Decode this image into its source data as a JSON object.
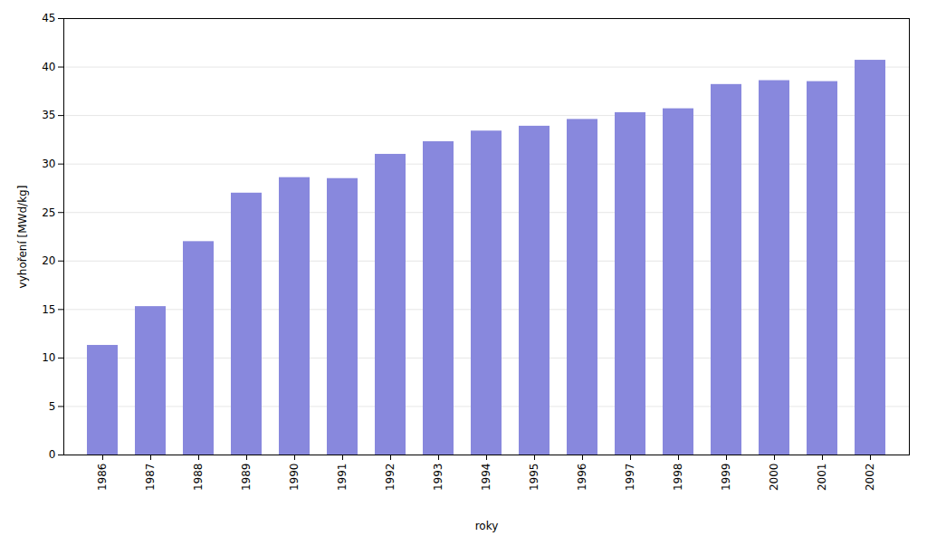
{
  "chart_data": {
    "type": "bar",
    "categories": [
      "1986",
      "1987",
      "1988",
      "1989",
      "1990",
      "1991",
      "1992",
      "1993",
      "1994",
      "1995",
      "1996",
      "1997",
      "1998",
      "1999",
      "2000",
      "2001",
      "2002"
    ],
    "values": [
      11.3,
      15.3,
      22.0,
      27.0,
      28.6,
      28.5,
      31.0,
      32.3,
      33.4,
      33.9,
      34.6,
      35.3,
      35.7,
      38.2,
      38.6,
      38.5,
      40.7
    ],
    "color": "#8888dd",
    "xlabel": "roky",
    "ylabel": "vyhoření [MWd/kg]",
    "ylim": [
      0,
      45
    ],
    "yticks": [
      0,
      5,
      10,
      15,
      20,
      25,
      30,
      35,
      40,
      45
    ],
    "grid": true
  }
}
